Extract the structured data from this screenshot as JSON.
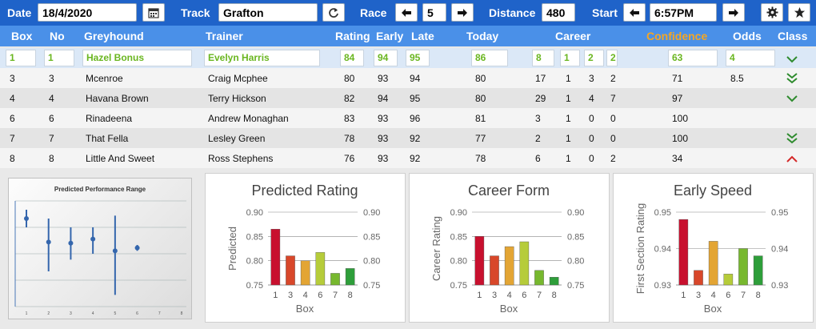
{
  "toolbar": {
    "date_label": "Date",
    "date_value": "18/4/2020",
    "track_label": "Track",
    "track_value": "Grafton",
    "race_label": "Race",
    "race_value": "5",
    "distance_label": "Distance",
    "distance_value": "480",
    "start_label": "Start",
    "start_value": "6:57PM"
  },
  "icons": [
    "calendar-icon",
    "refresh-icon",
    "arrow-left-icon",
    "arrow-right-icon",
    "gear-icon",
    "star-icon",
    "chevron-down-icon",
    "double-chevron-down-icon",
    "chevron-up-icon"
  ],
  "columns": {
    "box": "Box",
    "no": "No",
    "greyhound": "Greyhound",
    "trainer": "Trainer",
    "rating": "Rating",
    "early": "Early",
    "late": "Late",
    "today": "Today",
    "career": "Career",
    "confidence": "Confidence",
    "odds": "Odds",
    "class": "Class"
  },
  "rows": [
    {
      "box": "1",
      "no": "1",
      "name": "Hazel Bonus",
      "trainer": "Evelyn Harris",
      "rating": "84",
      "early": "94",
      "late": "95",
      "today": "86",
      "c1": "8",
      "c2": "1",
      "c3": "2",
      "c4": "2",
      "confidence": "63",
      "odds": "4",
      "class": "down"
    },
    {
      "box": "3",
      "no": "3",
      "name": "Mcenroe",
      "trainer": "Craig Mcphee",
      "rating": "80",
      "early": "93",
      "late": "94",
      "today": "80",
      "c1": "17",
      "c2": "1",
      "c3": "3",
      "c4": "2",
      "confidence": "71",
      "odds": "8.5",
      "class": "double-down"
    },
    {
      "box": "4",
      "no": "4",
      "name": "Havana Brown",
      "trainer": "Terry Hickson",
      "rating": "82",
      "early": "94",
      "late": "95",
      "today": "80",
      "c1": "29",
      "c2": "1",
      "c3": "4",
      "c4": "7",
      "confidence": "97",
      "odds": "",
      "class": "down"
    },
    {
      "box": "6",
      "no": "6",
      "name": "Rinadeena",
      "trainer": "Andrew Monaghan",
      "rating": "83",
      "early": "93",
      "late": "96",
      "today": "81",
      "c1": "3",
      "c2": "1",
      "c3": "0",
      "c4": "0",
      "confidence": "100",
      "odds": "",
      "class": "none"
    },
    {
      "box": "7",
      "no": "7",
      "name": "That Fella",
      "trainer": "Lesley Green",
      "rating": "78",
      "early": "93",
      "late": "92",
      "today": "77",
      "c1": "2",
      "c2": "1",
      "c3": "0",
      "c4": "0",
      "confidence": "100",
      "odds": "",
      "class": "double-down"
    },
    {
      "box": "8",
      "no": "8",
      "name": "Little And Sweet",
      "trainer": "Ross Stephens",
      "rating": "76",
      "early": "93",
      "late": "92",
      "today": "78",
      "c1": "6",
      "c2": "1",
      "c3": "0",
      "c4": "2",
      "confidence": "34",
      "odds": "",
      "class": "up"
    }
  ],
  "colors": {
    "accent": "#1f63c9",
    "header": "#4a90e8",
    "highlight_green": "#6ab620",
    "confidence": "#f5a623",
    "class_down": "#2e8b2e",
    "class_up": "#d42a2a"
  },
  "chart_data": [
    {
      "type": "scatter",
      "title": "Predicted Performance Range",
      "x": [
        1,
        2,
        3,
        4,
        5,
        6
      ],
      "y": [
        0.89,
        0.85,
        0.848,
        0.855,
        0.835,
        0.84
      ],
      "low": [
        0.875,
        0.8,
        0.82,
        0.83,
        0.76,
        0.835
      ],
      "high": [
        0.905,
        0.89,
        0.875,
        0.875,
        0.895,
        0.845
      ],
      "xticks": [
        "1",
        "2",
        "3",
        "4",
        "5",
        "6",
        "7",
        "8"
      ],
      "ylim": [
        0.74,
        0.92
      ]
    },
    {
      "type": "bar",
      "title": "Predicted Rating",
      "ylabel": "Predicted",
      "xlabel": "Box",
      "categories": [
        "1",
        "3",
        "4",
        "6",
        "7",
        "8"
      ],
      "values": [
        0.865,
        0.81,
        0.8,
        0.817,
        0.774,
        0.784
      ],
      "ylim": [
        0.75,
        0.9
      ],
      "yticks": [
        "0.75",
        "0.80",
        "0.85",
        "0.90"
      ]
    },
    {
      "type": "bar",
      "title": "Career Form",
      "ylabel": "Career Rating",
      "xlabel": "Box",
      "categories": [
        "1",
        "3",
        "4",
        "6",
        "7",
        "8"
      ],
      "values": [
        0.85,
        0.81,
        0.829,
        0.839,
        0.78,
        0.766
      ],
      "ylim": [
        0.75,
        0.9
      ],
      "yticks": [
        "0.75",
        "0.80",
        "0.85",
        "0.90"
      ]
    },
    {
      "type": "bar",
      "title": "Early Speed",
      "ylabel": "First Section Rating",
      "xlabel": "Box",
      "categories": [
        "1",
        "3",
        "4",
        "6",
        "7",
        "8"
      ],
      "values": [
        0.948,
        0.934,
        0.942,
        0.933,
        0.94,
        0.938
      ],
      "ylim": [
        0.93,
        0.95
      ],
      "yticks": [
        "0.93",
        "0.94",
        "0.95"
      ]
    }
  ]
}
